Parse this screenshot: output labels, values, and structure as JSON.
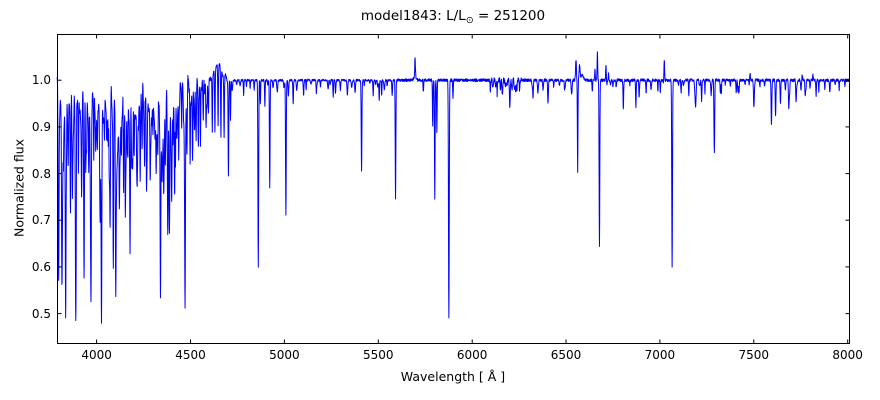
{
  "figure": {
    "title_prefix": "model1843: L/L",
    "title_sub": "⊙",
    "title_suffix": " = 251200",
    "background_color": "#ffffff",
    "frame_color": "#000000",
    "text_color": "#000000"
  },
  "chart_data": {
    "type": "line",
    "title": "model1843: L/L⊙ = 251200",
    "xlabel": "Wavelength [ Å ]",
    "ylabel": "Normalized flux",
    "xlim": [
      3789,
      8007
    ],
    "ylim": [
      0.437,
      1.099
    ],
    "x_ticks": [
      {
        "value": 4000,
        "label": "4000"
      },
      {
        "value": 4500,
        "label": "4500"
      },
      {
        "value": 5000,
        "label": "5000"
      },
      {
        "value": 5500,
        "label": "5500"
      },
      {
        "value": 6000,
        "label": "6000"
      },
      {
        "value": 6500,
        "label": "6500"
      },
      {
        "value": 7000,
        "label": "7000"
      },
      {
        "value": 7500,
        "label": "7500"
      },
      {
        "value": 8000,
        "label": "8000"
      }
    ],
    "y_ticks": [
      {
        "value": 0.5,
        "label": "0.5"
      },
      {
        "value": 0.6,
        "label": "0.6"
      },
      {
        "value": 0.7,
        "label": "0.7"
      },
      {
        "value": 0.8,
        "label": "0.8"
      },
      {
        "value": 0.9,
        "label": "0.9"
      },
      {
        "value": 1.0,
        "label": "1.0"
      }
    ],
    "grid": false,
    "legend": false,
    "line_color": "#0000ff",
    "line_width": 1,
    "continuum_flux": 1.0,
    "sample_step_angstrom": 1.0,
    "absorption_line_format": [
      "wavelength_angstrom",
      "min_flux",
      "sigma_angstrom"
    ],
    "absorption_lines": [
      [
        3798,
        0.63,
        2.0
      ],
      [
        3815,
        0.66,
        2.0
      ],
      [
        3823,
        0.9,
        1.5
      ],
      [
        3835,
        0.565,
        2.1
      ],
      [
        3849,
        0.91,
        1.5
      ],
      [
        3860,
        0.84,
        1.7
      ],
      [
        3871,
        0.82,
        1.6
      ],
      [
        3889,
        0.555,
        2.1
      ],
      [
        3903,
        0.86,
        1.6
      ],
      [
        3920,
        0.88,
        1.5
      ],
      [
        3933,
        0.6,
        2.0
      ],
      [
        3947,
        0.9,
        1.4
      ],
      [
        3958,
        0.86,
        1.6
      ],
      [
        3970,
        0.565,
        2.1
      ],
      [
        3985,
        0.91,
        1.4
      ],
      [
        3995,
        0.92,
        1.4
      ],
      [
        4003,
        0.89,
        1.5
      ],
      [
        4026,
        0.58,
        2.0
      ],
      [
        4042,
        0.92,
        1.4
      ],
      [
        4058,
        0.9,
        1.5
      ],
      [
        4072,
        0.76,
        1.7
      ],
      [
        4089,
        0.64,
        1.8
      ],
      [
        4102,
        0.556,
        2.1
      ],
      [
        4116,
        0.9,
        1.4
      ],
      [
        4121,
        0.85,
        1.6
      ],
      [
        4132,
        0.88,
        1.5
      ],
      [
        4144,
        0.83,
        1.6
      ],
      [
        4153,
        0.82,
        1.6
      ],
      [
        4164,
        0.92,
        1.4
      ],
      [
        4178,
        0.64,
        1.8
      ],
      [
        4187,
        0.9,
        1.4
      ],
      [
        4200,
        0.86,
        1.6
      ],
      [
        4215,
        0.92,
        1.4
      ],
      [
        4233,
        0.9,
        1.5
      ],
      [
        4253,
        0.9,
        1.5
      ],
      [
        4267,
        0.9,
        1.5
      ],
      [
        4285,
        0.9,
        1.5
      ],
      [
        4300,
        0.91,
        1.4
      ],
      [
        4317,
        0.85,
        1.6
      ],
      [
        4326,
        0.89,
        1.5
      ],
      [
        4340,
        0.554,
        2.1
      ],
      [
        4357,
        0.86,
        1.6
      ],
      [
        4368,
        0.88,
        1.5
      ],
      [
        4379,
        0.82,
        1.6
      ],
      [
        4388,
        0.7,
        1.8
      ],
      [
        4400,
        0.91,
        1.4
      ],
      [
        4415,
        0.88,
        1.5
      ],
      [
        4426,
        0.93,
        1.4
      ],
      [
        4437,
        0.92,
        1.4
      ],
      [
        4453,
        0.93,
        1.4
      ],
      [
        4471,
        0.52,
        2.1
      ],
      [
        4481,
        0.9,
        1.5
      ],
      [
        4498,
        0.84,
        1.6
      ],
      [
        4511,
        0.9,
        1.5
      ],
      [
        4522,
        0.93,
        1.4
      ],
      [
        4530,
        0.89,
        1.5
      ],
      [
        4542,
        0.86,
        1.6
      ],
      [
        4553,
        0.9,
        1.5
      ],
      [
        4568,
        0.92,
        1.4
      ],
      [
        4583,
        0.93,
        1.4
      ],
      [
        4596,
        0.94,
        1.4
      ],
      [
        4616,
        0.88,
        1.5
      ],
      [
        4630,
        0.865,
        1.5
      ],
      [
        4647,
        0.87,
        1.5
      ],
      [
        4662,
        0.855,
        1.5
      ],
      [
        4679,
        0.87,
        1.5
      ],
      [
        4702,
        0.795,
        1.7
      ],
      [
        4713,
        0.93,
        1.5
      ],
      [
        4861,
        0.6,
        1.9
      ],
      [
        4872,
        0.95,
        1.4
      ],
      [
        4896,
        0.945,
        1.5
      ],
      [
        4922,
        0.77,
        1.7
      ],
      [
        5008,
        0.71,
        1.8
      ],
      [
        5047,
        0.955,
        1.5
      ],
      [
        5170,
        0.975,
        1.4
      ],
      [
        5260,
        0.965,
        1.6
      ],
      [
        5272,
        0.972,
        1.4
      ],
      [
        5411,
        0.807,
        1.8
      ],
      [
        5473,
        0.968,
        1.5
      ],
      [
        5505,
        0.958,
        1.6
      ],
      [
        5518,
        0.966,
        1.4
      ],
      [
        5592,
        0.745,
        1.7
      ],
      [
        5740,
        0.975,
        1.5
      ],
      [
        5790,
        0.9,
        1.5
      ],
      [
        5801,
        0.745,
        1.6
      ],
      [
        5812,
        0.89,
        1.6
      ],
      [
        5876,
        0.492,
        2.0
      ],
      [
        5898,
        0.962,
        1.5
      ],
      [
        6160,
        0.972,
        2.0
      ],
      [
        6200,
        0.966,
        2.0
      ],
      [
        6232,
        0.972,
        1.8
      ],
      [
        6324,
        0.962,
        1.9
      ],
      [
        6404,
        0.957,
        1.9
      ],
      [
        6495,
        0.985,
        1.6
      ],
      [
        6530,
        0.968,
        2.4
      ],
      [
        6562,
        0.805,
        1.5
      ],
      [
        6640,
        0.975,
        1.5
      ],
      [
        6678,
        0.642,
        1.8
      ],
      [
        6750,
        0.985,
        1.5
      ],
      [
        6805,
        0.955,
        1.8
      ],
      [
        6872,
        0.97,
        1.8
      ],
      [
        6890,
        0.972,
        1.6
      ],
      [
        7002,
        0.975,
        1.6
      ],
      [
        7065,
        0.598,
        1.9
      ],
      [
        7113,
        0.972,
        1.6
      ],
      [
        7190,
        0.942,
        2.6
      ],
      [
        7222,
        0.957,
        1.8
      ],
      [
        7290,
        0.848,
        1.8
      ],
      [
        7322,
        0.972,
        1.6
      ],
      [
        7415,
        0.976,
        1.6
      ],
      [
        7500,
        0.947,
        1.8
      ],
      [
        7594,
        0.905,
        1.9
      ],
      [
        7616,
        0.922,
        1.8
      ],
      [
        7642,
        0.962,
        1.6
      ],
      [
        7686,
        0.946,
        1.8
      ],
      [
        7725,
        0.956,
        1.7
      ],
      [
        7774,
        0.966,
        1.8
      ],
      [
        7832,
        0.975,
        1.6
      ],
      [
        7905,
        0.982,
        1.5
      ]
    ],
    "emission_line_format": [
      "wavelength_angstrom",
      "peak_flux",
      "sigma_angstrom"
    ],
    "emission_lines": [
      [
        4397,
        1.02,
        1.3
      ],
      [
        4486,
        1.018,
        1.2
      ],
      [
        4640,
        1.028,
        16
      ],
      [
        4658,
        1.016,
        8
      ],
      [
        4686,
        1.012,
        4
      ],
      [
        5696,
        1.042,
        1.7
      ],
      [
        5696,
        1.008,
        6
      ],
      [
        6553,
        1.043,
        2.2
      ],
      [
        6572,
        1.032,
        2.6
      ],
      [
        6586,
        1.012,
        6
      ],
      [
        6654,
        1.024,
        1.5
      ],
      [
        6667,
        1.06,
        1.6
      ],
      [
        6713,
        1.035,
        1.8
      ],
      [
        6726,
        1.014,
        1.5
      ],
      [
        7023,
        1.048,
        1.8
      ],
      [
        7480,
        1.014,
        1.6
      ],
      [
        7758,
        1.012,
        1.5
      ],
      [
        7815,
        1.012,
        1.5
      ]
    ],
    "noise_band_format": [
      "range_angstrom",
      "amplitude_flux"
    ],
    "noise_bands": [
      {
        "range": [
          3789,
          4600
        ],
        "amplitude": 0.006
      },
      {
        "range": [
          4600,
          4700
        ],
        "amplitude": 0.004
      },
      {
        "range": [
          4700,
          5590
        ],
        "amplitude": 0.0022
      },
      {
        "range": [
          5590,
          6090
        ],
        "amplitude": 0.003
      },
      {
        "range": [
          6090,
          6270
        ],
        "amplitude": 0.006
      },
      {
        "range": [
          6270,
          8007
        ],
        "amplitude": 0.003
      }
    ],
    "forest_band_format": [
      "range_angstrom",
      "mean_spacing_angstrom",
      "depth_min",
      "depth_max"
    ],
    "forest_bands": [
      {
        "range": [
          3792,
          4445
        ],
        "spacing": 4.2,
        "depth_min": 0.03,
        "depth_max": 0.2
      },
      {
        "range": [
          4445,
          4600
        ],
        "spacing": 7,
        "depth_min": 0.02,
        "depth_max": 0.09
      },
      {
        "range": [
          4700,
          4850
        ],
        "spacing": 18,
        "depth_min": 0.01,
        "depth_max": 0.04
      },
      {
        "range": [
          4900,
          5400
        ],
        "spacing": 26,
        "depth_min": 0.008,
        "depth_max": 0.035
      },
      {
        "range": [
          5420,
          5590
        ],
        "spacing": 24,
        "depth_min": 0.008,
        "depth_max": 0.04
      },
      {
        "range": [
          6090,
          6270
        ],
        "spacing": 13,
        "depth_min": 0.012,
        "depth_max": 0.03
      },
      {
        "range": [
          6300,
          6520
        ],
        "spacing": 30,
        "depth_min": 0.008,
        "depth_max": 0.03
      },
      {
        "range": [
          6700,
          7050
        ],
        "spacing": 30,
        "depth_min": 0.008,
        "depth_max": 0.03
      },
      {
        "range": [
          7090,
          7580
        ],
        "spacing": 27,
        "depth_min": 0.008,
        "depth_max": 0.035
      },
      {
        "range": [
          7630,
          8000
        ],
        "spacing": 26,
        "depth_min": 0.008,
        "depth_max": 0.03
      }
    ]
  }
}
